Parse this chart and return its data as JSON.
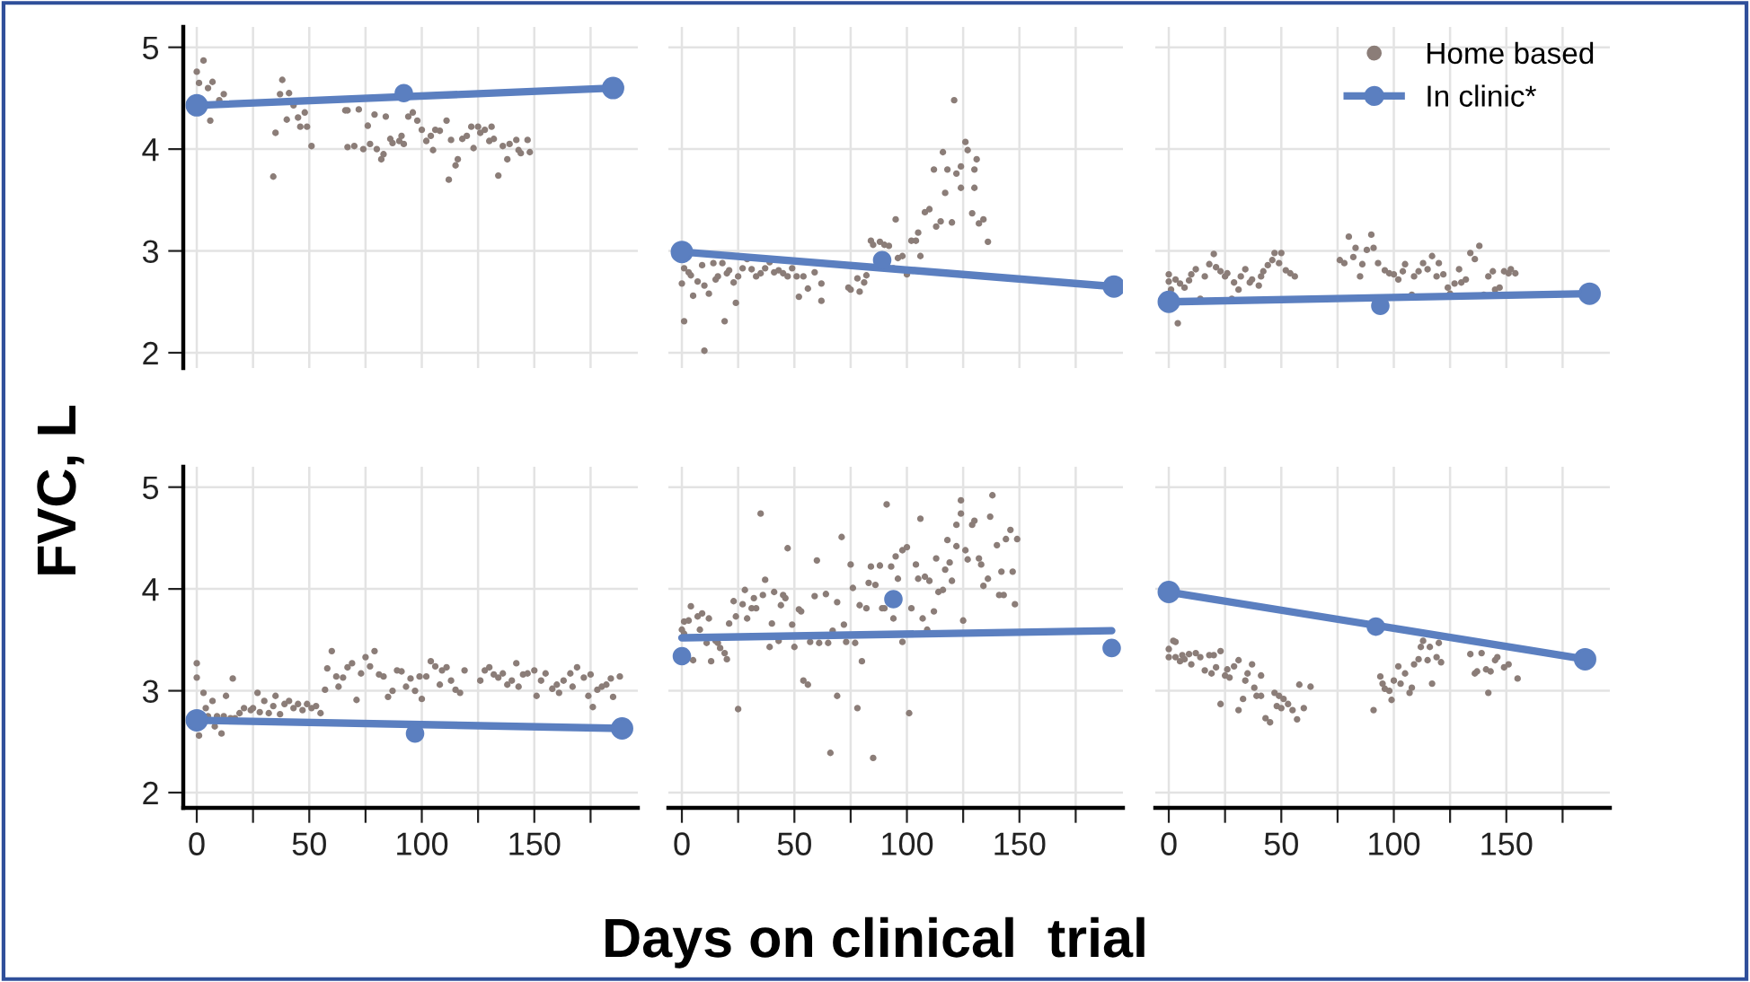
{
  "chart_data": [
    {
      "type": "scatter",
      "ylabel": "FVC, L",
      "xlim": [
        -6,
        196
      ],
      "ylim": [
        1.85,
        5.2
      ],
      "xticks": [
        0,
        {
          "value": 25,
          "label": null
        },
        50,
        {
          "value": 75,
          "label": null
        },
        100,
        {
          "value": 125,
          "label": null
        },
        150,
        {
          "value": 175,
          "label": null
        }
      ],
      "yticks": [
        2,
        3,
        4,
        5
      ],
      "grid": true,
      "tick_labels": "y",
      "series": [
        {
          "type": "scatter",
          "color": "#8b7d78",
          "x": [
            0,
            3,
            1,
            5,
            7,
            6,
            10,
            12,
            35,
            34,
            38,
            37,
            41,
            40,
            43,
            45,
            46,
            48,
            49,
            51,
            66,
            67,
            67,
            70,
            72,
            74,
            76,
            77,
            79,
            80,
            82,
            83,
            84,
            86,
            87,
            90,
            91,
            92,
            94,
            96,
            98,
            100,
            102,
            104,
            105,
            106,
            108,
            111,
            112,
            113,
            115,
            116,
            118,
            120,
            122,
            123,
            125,
            126,
            128,
            130,
            131,
            132,
            134,
            136,
            138,
            139,
            142,
            143,
            144,
            147,
            148
          ],
          "values": [
            4.76,
            4.87,
            4.65,
            4.6,
            4.66,
            4.28,
            4.48,
            4.54,
            4.16,
            3.73,
            4.68,
            4.54,
            4.55,
            4.29,
            4.43,
            4.31,
            4.22,
            4.36,
            4.22,
            4.03,
            4.38,
            4.38,
            4.02,
            4.03,
            4.39,
            4.0,
            4.23,
            4.05,
            4.34,
            4.0,
            3.9,
            3.95,
            4.32,
            4.1,
            4.06,
            4.08,
            4.13,
            4.05,
            4.32,
            4.36,
            4.28,
            4.19,
            4.08,
            4.13,
            3.99,
            4.19,
            4.18,
            4.28,
            3.7,
            4.09,
            3.84,
            3.9,
            4.1,
            4.13,
            4.22,
            4.01,
            4.22,
            4.16,
            4.19,
            4.08,
            4.22,
            4.1,
            3.74,
            4.03,
            3.9,
            4.05,
            4.09,
            3.99,
            3.96,
            4.09,
            3.97
          ]
        },
        {
          "type": "line",
          "color": "#5b7fc0",
          "marker": "circle",
          "x": [
            0,
            185
          ],
          "values": [
            4.43,
            4.6
          ]
        },
        {
          "type": "scatter",
          "color": "#5b7fc0",
          "x": [
            92
          ],
          "values": [
            4.55
          ]
        }
      ]
    },
    {
      "type": "scatter",
      "xlim": [
        -6,
        196
      ],
      "ylim": [
        1.85,
        5.2
      ],
      "xticks": [
        0,
        {
          "value": 25,
          "label": null
        },
        50,
        {
          "value": 75,
          "label": null
        },
        100,
        {
          "value": 125,
          "label": null
        },
        150,
        {
          "value": 175,
          "label": null
        }
      ],
      "yticks": [
        2,
        3,
        4,
        5
      ],
      "grid": true,
      "tick_labels": false,
      "series": [
        {
          "type": "scatter",
          "color": "#8b7d78",
          "x": [
            0,
            1,
            1,
            3,
            4,
            5,
            7,
            9,
            10,
            10,
            12,
            14,
            15,
            16,
            18,
            19,
            20,
            21,
            23,
            24,
            25,
            27,
            29,
            31,
            33,
            35,
            37,
            39,
            41,
            43,
            45,
            47,
            49,
            51,
            52,
            54,
            56,
            59,
            62,
            62,
            74,
            75,
            78,
            79,
            81,
            82,
            84,
            85,
            88,
            90,
            92,
            94,
            95,
            96,
            98,
            100,
            102,
            104,
            105,
            106,
            108,
            110,
            112,
            113,
            115,
            116,
            117,
            118,
            120,
            121,
            122,
            124,
            124,
            126,
            127,
            130,
            130,
            131,
            129,
            132,
            134,
            136
          ],
          "values": [
            2.68,
            2.31,
            2.83,
            2.79,
            2.76,
            2.56,
            2.7,
            2.86,
            2.66,
            2.02,
            2.58,
            2.88,
            2.72,
            2.75,
            2.88,
            2.31,
            2.78,
            2.81,
            2.69,
            2.49,
            2.75,
            2.83,
            2.92,
            2.82,
            2.75,
            2.78,
            2.83,
            2.89,
            2.79,
            2.81,
            2.78,
            2.75,
            2.83,
            2.75,
            2.55,
            2.75,
            2.63,
            2.79,
            2.68,
            2.51,
            2.64,
            2.62,
            2.73,
            2.6,
            2.69,
            2.76,
            3.1,
            3.06,
            3.09,
            3.06,
            3.05,
            2.83,
            3.31,
            2.93,
            2.95,
            2.77,
            3.1,
            3.1,
            3.18,
            2.95,
            3.38,
            3.41,
            3.8,
            3.24,
            3.29,
            3.97,
            3.57,
            3.8,
            3.28,
            4.48,
            3.76,
            3.62,
            3.83,
            4.07,
            3.99,
            3.62,
            3.8,
            3.9,
            3.37,
            3.27,
            3.31,
            3.09
          ]
        },
        {
          "type": "line",
          "color": "#5b7fc0",
          "marker": "circle",
          "x": [
            0,
            192
          ],
          "values": [
            2.99,
            2.65
          ]
        },
        {
          "type": "scatter",
          "color": "#5b7fc0",
          "x": [
            89
          ],
          "values": [
            2.91
          ]
        }
      ]
    },
    {
      "type": "scatter",
      "xlim": [
        -6,
        196
      ],
      "ylim": [
        1.85,
        5.2
      ],
      "xticks": [
        0,
        {
          "value": 25,
          "label": null
        },
        50,
        {
          "value": 75,
          "label": null
        },
        100,
        {
          "value": 125,
          "label": null
        },
        150,
        {
          "value": 175,
          "label": null
        }
      ],
      "yticks": [
        2,
        3,
        4,
        5
      ],
      "grid": true,
      "tick_labels": false,
      "legend": "top right",
      "series": [
        {
          "name": "Home based",
          "type": "scatter",
          "color": "#8b7d78",
          "x": [
            0,
            0,
            1,
            3,
            4,
            5,
            7,
            9,
            10,
            12,
            14,
            16,
            18,
            20,
            21,
            23,
            25,
            26,
            28,
            29,
            31,
            32,
            34,
            36,
            37,
            40,
            41,
            42,
            44,
            46,
            47,
            49,
            50,
            52,
            54,
            56,
            76,
            78,
            80,
            82,
            83,
            85,
            86,
            88,
            90,
            91,
            93,
            96,
            98,
            100,
            102,
            104,
            105,
            108,
            109,
            111,
            113,
            115,
            117,
            119,
            120,
            122,
            124,
            125,
            127,
            129,
            130,
            132,
            134,
            136,
            138,
            140,
            142,
            144,
            145,
            147,
            149,
            151,
            152,
            154
          ],
          "values": [
            2.77,
            2.7,
            2.62,
            2.72,
            2.29,
            2.68,
            2.64,
            2.71,
            2.77,
            2.82,
            2.53,
            2.75,
            2.87,
            2.97,
            2.84,
            2.8,
            2.75,
            2.78,
            2.53,
            2.69,
            2.62,
            2.75,
            2.82,
            2.69,
            2.72,
            2.66,
            2.75,
            2.8,
            2.86,
            2.91,
            2.98,
            2.88,
            2.98,
            2.81,
            2.78,
            2.75,
            2.91,
            2.88,
            3.14,
            2.94,
            3.03,
            2.75,
            2.87,
            3.01,
            3.16,
            3.03,
            2.88,
            2.81,
            2.78,
            2.77,
            2.72,
            2.8,
            2.87,
            2.57,
            2.75,
            2.8,
            2.88,
            2.82,
            2.95,
            2.75,
            2.88,
            2.77,
            2.64,
            2.58,
            2.68,
            2.82,
            2.69,
            2.72,
            2.98,
            2.92,
            3.05,
            2.57,
            2.75,
            2.8,
            2.62,
            2.64,
            2.8,
            2.78,
            2.82,
            2.78
          ]
        },
        {
          "name": "In clinic*",
          "type": "line",
          "color": "#5b7fc0",
          "marker": "circle",
          "x": [
            0,
            187
          ],
          "values": [
            2.5,
            2.58
          ]
        },
        {
          "type": "scatter",
          "color": "#5b7fc0",
          "x": [
            94
          ],
          "values": [
            2.46
          ]
        }
      ]
    },
    {
      "type": "scatter",
      "xlim": [
        -6,
        196
      ],
      "ylim": [
        1.85,
        5.2
      ],
      "xticks": [
        0,
        {
          "value": 25,
          "label": null
        },
        50,
        {
          "value": 75,
          "label": null
        },
        100,
        {
          "value": 125,
          "label": null
        },
        150,
        {
          "value": 175,
          "label": null
        }
      ],
      "yticks": [
        2,
        3,
        4,
        5
      ],
      "grid": true,
      "series": [
        {
          "type": "scatter",
          "color": "#8b7d78",
          "x": [
            0,
            0,
            1,
            3,
            4,
            5,
            7,
            8,
            9,
            11,
            12,
            13,
            15,
            16,
            17,
            19,
            21,
            24,
            25,
            27,
            28,
            30,
            32,
            34,
            35,
            37,
            39,
            41,
            43,
            45,
            47,
            49,
            51,
            53,
            55,
            57,
            58,
            60,
            62,
            63,
            65,
            67,
            69,
            71,
            73,
            75,
            77,
            79,
            81,
            83,
            85,
            87,
            89,
            91,
            93,
            95,
            97,
            99,
            100,
            102,
            104,
            106,
            108,
            109,
            111,
            113,
            115,
            117,
            119,
            126,
            128,
            130,
            132,
            134,
            136,
            138,
            140,
            142,
            143,
            145,
            147,
            150,
            151,
            153,
            155,
            158,
            160,
            161,
            163,
            166,
            167,
            169,
            172,
            174,
            175,
            176,
            178,
            180,
            182,
            184,
            185,
            188
          ],
          "values": [
            3.13,
            3.27,
            2.56,
            2.98,
            2.83,
            2.75,
            2.9,
            2.65,
            2.75,
            2.58,
            2.75,
            2.95,
            2.73,
            3.12,
            2.73,
            2.78,
            2.83,
            2.81,
            2.83,
            2.98,
            2.79,
            2.9,
            2.78,
            2.85,
            2.95,
            2.77,
            2.87,
            2.9,
            2.83,
            2.87,
            2.81,
            2.87,
            2.83,
            2.85,
            2.78,
            3.01,
            3.22,
            3.39,
            3.14,
            3.04,
            3.13,
            3.23,
            3.27,
            2.91,
            3.17,
            3.33,
            3.24,
            3.39,
            3.16,
            3.14,
            2.94,
            3.0,
            3.2,
            3.19,
            3.04,
            3.12,
            3.0,
            3.14,
            2.92,
            3.14,
            3.29,
            3.24,
            3.06,
            3.2,
            3.23,
            3.1,
            3.01,
            2.98,
            3.2,
            3.1,
            3.2,
            3.23,
            3.16,
            3.13,
            3.17,
            3.06,
            3.1,
            3.27,
            3.04,
            3.16,
            3.17,
            3.2,
            2.95,
            3.1,
            3.17,
            3.02,
            3.06,
            2.98,
            3.1,
            3.17,
            3.04,
            3.23,
            3.13,
            2.95,
            3.16,
            2.84,
            3.01,
            3.04,
            3.06,
            3.12,
            2.94,
            3.14
          ]
        },
        {
          "type": "line",
          "color": "#5b7fc0",
          "marker": "circle",
          "x": [
            0,
            189
          ],
          "values": [
            2.71,
            2.63
          ]
        },
        {
          "type": "scatter",
          "color": "#5b7fc0",
          "x": [
            97
          ],
          "values": [
            2.58
          ]
        }
      ]
    },
    {
      "type": "scatter",
      "xlabel": "Days on clinical  trial",
      "xlim": [
        -6,
        196
      ],
      "ylim": [
        1.85,
        5.2
      ],
      "xticks": [
        0,
        {
          "value": 25,
          "label": null
        },
        50,
        {
          "value": 75,
          "label": null
        },
        100,
        {
          "value": 125,
          "label": null
        },
        150,
        {
          "value": 175,
          "label": null
        }
      ],
      "yticks": [
        2,
        3,
        4,
        5
      ],
      "grid": true,
      "tick_labels": "x",
      "series": [
        {
          "type": "scatter",
          "color": "#8b7d78",
          "x": [
            0,
            1,
            1,
            3,
            4,
            5,
            7,
            8,
            9,
            11,
            12,
            13,
            15,
            16,
            17,
            19,
            20,
            21,
            23,
            24,
            25,
            27,
            28,
            29,
            31,
            32,
            33,
            35,
            36,
            37,
            39,
            40,
            41,
            43,
            44,
            45,
            46,
            47,
            49,
            50,
            52,
            53,
            54,
            56,
            57,
            59,
            60,
            61,
            64,
            65,
            66,
            67,
            69,
            69,
            71,
            72,
            73,
            75,
            76,
            77,
            78,
            79,
            80,
            82,
            83,
            84,
            85,
            86,
            88,
            89,
            90,
            91,
            93,
            94,
            95,
            96,
            98,
            98,
            100,
            101,
            102,
            104,
            105,
            106,
            107,
            108,
            109,
            110,
            112,
            113,
            114,
            116,
            117,
            118,
            119,
            120,
            122,
            122,
            124,
            124,
            125,
            126,
            127,
            129,
            130,
            132,
            133,
            134,
            136,
            137,
            138,
            140,
            141,
            142,
            143,
            144,
            146,
            147,
            148,
            149
          ],
          "values": [
            3.6,
            3.68,
            3.56,
            3.69,
            3.83,
            3.3,
            3.73,
            3.6,
            3.76,
            3.47,
            3.71,
            3.29,
            3.49,
            3.47,
            3.42,
            3.37,
            3.31,
            3.66,
            3.88,
            3.73,
            2.82,
            3.85,
            3.99,
            3.71,
            3.81,
            3.91,
            3.81,
            4.74,
            3.94,
            4.09,
            3.43,
            3.66,
            3.97,
            3.49,
            3.84,
            3.94,
            3.91,
            4.4,
            3.65,
            3.43,
            3.8,
            3.78,
            3.1,
            3.06,
            3.48,
            3.93,
            4.28,
            3.47,
            3.95,
            3.47,
            2.39,
            3.59,
            3.87,
            2.95,
            4.51,
            3.65,
            3.48,
            4.24,
            4.01,
            3.47,
            2.83,
            3.84,
            3.29,
            3.81,
            4.06,
            4.22,
            2.34,
            4.04,
            4.23,
            3.81,
            3.81,
            4.83,
            4.22,
            3.71,
            4.32,
            4.1,
            3.48,
            4.38,
            4.41,
            2.78,
            3.81,
            4.24,
            4.1,
            4.69,
            3.71,
            4.12,
            3.6,
            4.08,
            3.78,
            4.3,
            3.97,
            3.99,
            4.19,
            4.48,
            4.26,
            4.08,
            4.63,
            4.42,
            4.87,
            4.74,
            3.69,
            4.38,
            4.29,
            4.63,
            4.67,
            4.3,
            4.24,
            4.03,
            4.1,
            4.71,
            4.92,
            4.43,
            3.94,
            4.17,
            3.94,
            4.49,
            4.58,
            4.17,
            3.85,
            4.49
          ]
        },
        {
          "type": "line",
          "color": "#5b7fc0",
          "marker": "none",
          "x": [
            0,
            191
          ],
          "values": [
            3.52,
            3.59
          ]
        },
        {
          "type": "scatter",
          "color": "#5b7fc0",
          "x": [
            0,
            94,
            191
          ],
          "values": [
            3.34,
            3.9,
            3.42
          ]
        }
      ]
    },
    {
      "type": "scatter",
      "xlim": [
        -6,
        196
      ],
      "ylim": [
        1.85,
        5.2
      ],
      "xticks": [
        0,
        {
          "value": 25,
          "label": null
        },
        50,
        {
          "value": 75,
          "label": null
        },
        100,
        {
          "value": 125,
          "label": null
        },
        150,
        {
          "value": 175,
          "label": null
        }
      ],
      "yticks": [
        2,
        3,
        4,
        5
      ],
      "grid": true,
      "tick_labels": "x",
      "series": [
        {
          "type": "scatter",
          "color": "#8b7d78",
          "x": [
            0,
            0,
            2,
            3,
            3,
            5,
            6,
            7,
            9,
            10,
            12,
            14,
            16,
            18,
            19,
            20,
            21,
            23,
            23,
            25,
            26,
            27,
            29,
            31,
            31,
            33,
            34,
            35,
            37,
            38,
            39,
            41,
            41,
            43,
            45,
            47,
            48,
            49,
            50,
            51,
            53,
            55,
            57,
            58,
            60,
            63,
            91,
            94,
            95,
            96,
            98,
            99,
            100,
            102,
            103,
            105,
            107,
            108,
            109,
            111,
            112,
            113,
            115,
            116,
            117,
            119,
            120,
            121,
            134,
            136,
            137,
            139,
            141,
            142,
            143,
            145,
            146,
            149,
            151,
            155
          ],
          "values": [
            3.33,
            3.41,
            3.49,
            3.33,
            3.48,
            3.29,
            3.35,
            3.31,
            3.36,
            3.26,
            3.37,
            3.33,
            3.2,
            3.35,
            3.17,
            3.35,
            3.23,
            3.39,
            2.87,
            3.15,
            3.21,
            3.13,
            3.24,
            3.3,
            2.81,
            2.92,
            3.1,
            3.17,
            3.26,
            3.03,
            2.95,
            3.15,
            2.95,
            2.73,
            2.69,
            2.98,
            2.85,
            2.95,
            2.83,
            2.92,
            2.87,
            2.81,
            2.72,
            3.06,
            2.83,
            3.04,
            2.81,
            3.14,
            3.07,
            3.02,
            3.0,
            2.91,
            3.1,
            3.24,
            3.07,
            3.17,
            2.98,
            3.03,
            3.26,
            3.31,
            3.43,
            3.49,
            3.3,
            3.43,
            3.07,
            3.33,
            3.47,
            3.28,
            3.36,
            3.17,
            3.19,
            3.37,
            3.21,
            2.98,
            3.19,
            3.3,
            3.33,
            3.23,
            3.26,
            3.12
          ]
        },
        {
          "type": "line",
          "color": "#5b7fc0",
          "marker": "circle",
          "x": [
            0,
            185
          ],
          "values": [
            3.97,
            3.31
          ]
        },
        {
          "type": "scatter",
          "color": "#5b7fc0",
          "x": [
            92
          ],
          "values": [
            3.63
          ]
        }
      ]
    }
  ]
}
